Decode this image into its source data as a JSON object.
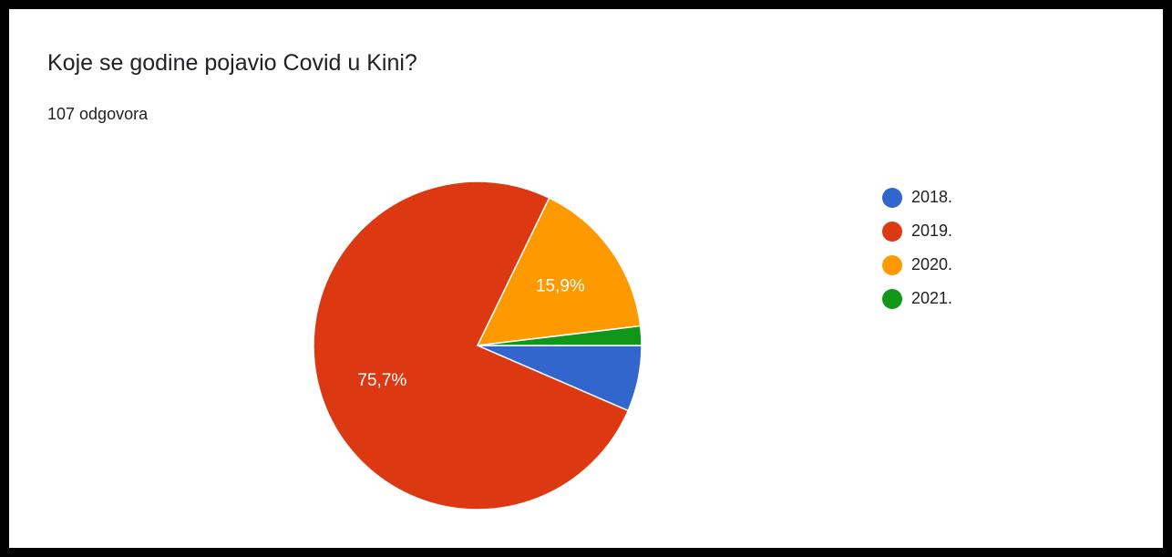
{
  "chart_data": {
    "type": "pie",
    "title": "Koje se godine pojavio Covid u Kini?",
    "subtitle": "107 odgovora",
    "categories": [
      "2018.",
      "2019.",
      "2020.",
      "2021."
    ],
    "values": [
      6.5,
      75.7,
      15.9,
      1.9
    ],
    "colors": [
      "#3366cc",
      "#dc3912",
      "#ff9900",
      "#109618"
    ],
    "data_labels": {
      "2019.": "75,7%",
      "2020.": "15,9%"
    },
    "legend_position": "right"
  }
}
